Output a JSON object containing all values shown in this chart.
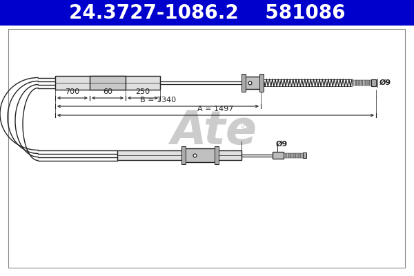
{
  "title_text": "24.3727-1086.2    581086",
  "title_bg": "#0000CC",
  "title_fg": "#FFFFFF",
  "title_fontsize": 20,
  "bg_color": "#FFFFFF",
  "border_color": "#888888",
  "dc": "#222222",
  "watermark_color": "#CCCCCC",
  "dim_700": "700",
  "dim_60": "60",
  "dim_250": "250",
  "dim_B": "B = 1340",
  "dim_A": "A = 1497",
  "dim_d": "Ø9"
}
